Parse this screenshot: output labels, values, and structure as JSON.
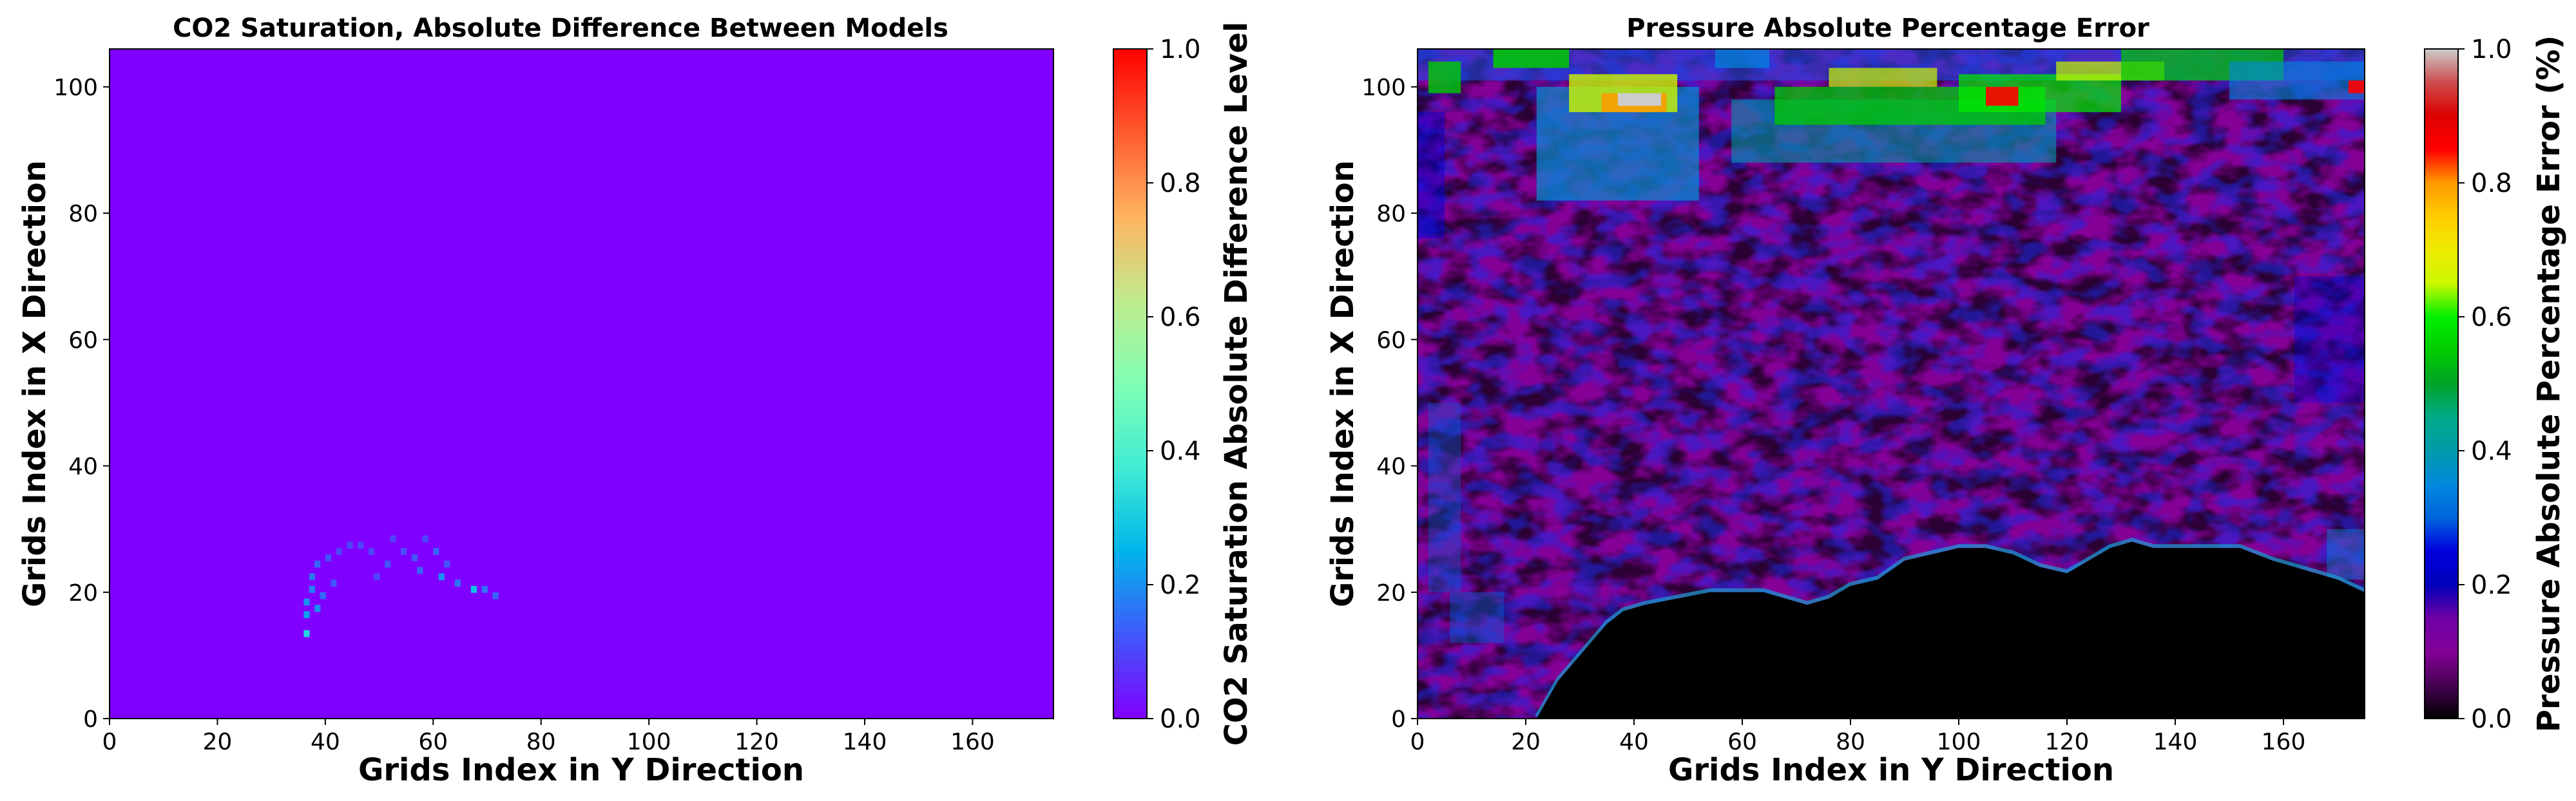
{
  "chart_data": [
    {
      "type": "heatmap",
      "title": "CO2 Saturation, Absolute Difference Between Models",
      "xlabel": "Grids Index in Y Direction",
      "ylabel": "Grids Index in X Direction",
      "colorbar_label": "CO2 Saturation Absolute Difference Level",
      "colormap": "rainbow",
      "xlim": [
        0,
        175
      ],
      "ylim": [
        0,
        106
      ],
      "xticks": [
        "0",
        "20",
        "40",
        "60",
        "80",
        "100",
        "120",
        "140",
        "160"
      ],
      "yticks": [
        "0",
        "20",
        "40",
        "60",
        "80",
        "100"
      ],
      "clim": [
        0,
        1
      ],
      "colorbar_ticks": [
        "0.0",
        "0.2",
        "0.4",
        "0.6",
        "0.8",
        "1.0"
      ],
      "background_value": 0.0,
      "background_color": "#8000ff",
      "plume_points": [
        {
          "x": 36,
          "y": 13,
          "v": 0.32
        },
        {
          "x": 36,
          "y": 16,
          "v": 0.22
        },
        {
          "x": 36,
          "y": 18,
          "v": 0.2
        },
        {
          "x": 37,
          "y": 20,
          "v": 0.18
        },
        {
          "x": 37,
          "y": 22,
          "v": 0.16
        },
        {
          "x": 38,
          "y": 17,
          "v": 0.2
        },
        {
          "x": 38,
          "y": 24,
          "v": 0.14
        },
        {
          "x": 39,
          "y": 19,
          "v": 0.15
        },
        {
          "x": 40,
          "y": 25,
          "v": 0.12
        },
        {
          "x": 41,
          "y": 21,
          "v": 0.12
        },
        {
          "x": 42,
          "y": 26,
          "v": 0.1
        },
        {
          "x": 44,
          "y": 27,
          "v": 0.1
        },
        {
          "x": 46,
          "y": 27,
          "v": 0.1
        },
        {
          "x": 48,
          "y": 26,
          "v": 0.1
        },
        {
          "x": 49,
          "y": 22,
          "v": 0.1
        },
        {
          "x": 51,
          "y": 24,
          "v": 0.12
        },
        {
          "x": 52,
          "y": 28,
          "v": 0.09
        },
        {
          "x": 54,
          "y": 26,
          "v": 0.11
        },
        {
          "x": 56,
          "y": 25,
          "v": 0.12
        },
        {
          "x": 57,
          "y": 23,
          "v": 0.14
        },
        {
          "x": 58,
          "y": 28,
          "v": 0.1
        },
        {
          "x": 60,
          "y": 26,
          "v": 0.14
        },
        {
          "x": 61,
          "y": 22,
          "v": 0.2
        },
        {
          "x": 62,
          "y": 24,
          "v": 0.12
        },
        {
          "x": 64,
          "y": 21,
          "v": 0.16
        },
        {
          "x": 67,
          "y": 20,
          "v": 0.28
        },
        {
          "x": 69,
          "y": 20,
          "v": 0.16
        },
        {
          "x": 71,
          "y": 19,
          "v": 0.14
        }
      ]
    },
    {
      "type": "heatmap",
      "title": "Pressure Absolute Percentage Error",
      "xlabel": "Grids Index in Y Direction",
      "ylabel": "Grids Index in X Direction",
      "colorbar_label": "Pressure Absolute Percentage Error (%)",
      "colormap": "nipy_spectral",
      "xlim": [
        0,
        175
      ],
      "ylim": [
        0,
        106
      ],
      "xticks": [
        "0",
        "20",
        "40",
        "60",
        "80",
        "100",
        "120",
        "140",
        "160"
      ],
      "yticks": [
        "0",
        "20",
        "40",
        "60",
        "80",
        "100"
      ],
      "clim": [
        0,
        1
      ],
      "colorbar_ticks": [
        "0.0",
        "0.2",
        "0.4",
        "0.6",
        "0.8",
        "1.0"
      ],
      "masked_region_color": "#000000",
      "masked_region_boundary": [
        [
          22,
          0
        ],
        [
          24,
          3
        ],
        [
          26,
          6
        ],
        [
          29,
          9
        ],
        [
          32,
          12
        ],
        [
          35,
          15
        ],
        [
          38,
          17
        ],
        [
          42,
          18
        ],
        [
          48,
          19
        ],
        [
          54,
          20
        ],
        [
          60,
          20
        ],
        [
          64,
          20
        ],
        [
          68,
          19
        ],
        [
          72,
          18
        ],
        [
          76,
          19
        ],
        [
          80,
          21
        ],
        [
          85,
          22
        ],
        [
          90,
          25
        ],
        [
          95,
          26
        ],
        [
          100,
          27
        ],
        [
          105,
          27
        ],
        [
          110,
          26
        ],
        [
          115,
          24
        ],
        [
          120,
          23
        ],
        [
          124,
          25
        ],
        [
          128,
          27
        ],
        [
          132,
          28
        ],
        [
          136,
          27
        ],
        [
          140,
          27
        ],
        [
          146,
          27
        ],
        [
          152,
          27
        ],
        [
          158,
          25
        ],
        [
          162,
          24
        ],
        [
          166,
          23
        ],
        [
          170,
          22
        ],
        [
          175,
          20
        ],
        [
          175,
          0
        ]
      ]
    }
  ]
}
